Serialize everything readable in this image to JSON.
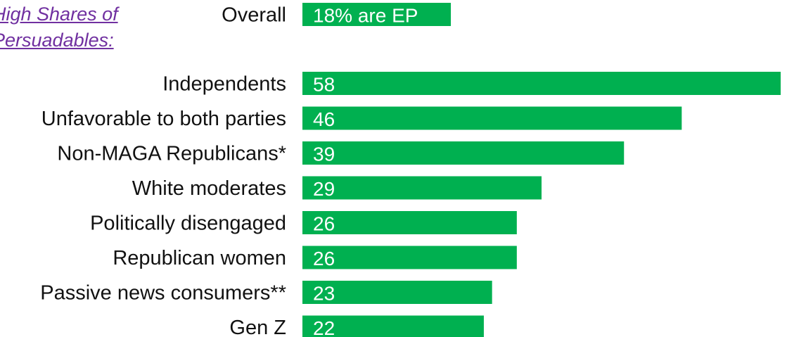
{
  "chart_data": {
    "type": "bar",
    "orientation": "horizontal",
    "subtitle": "High Shares of\nPersuadables:",
    "overall": {
      "category": "Overall",
      "value": 18,
      "label": "18% are EP"
    },
    "categories": [
      "Independents",
      "Unfavorable to both parties",
      "Non-MAGA Republicans*",
      "White moderates",
      "Politically disengaged",
      "Republican women",
      "Passive news consumers**",
      "Gen Z"
    ],
    "values": [
      58,
      46,
      39,
      29,
      26,
      26,
      23,
      22
    ],
    "xlim": [
      0,
      58
    ],
    "colors": {
      "bar": "#00b050",
      "subtitle": "#7030a0",
      "text": "#111111",
      "bar_label": "#ffffff"
    }
  }
}
